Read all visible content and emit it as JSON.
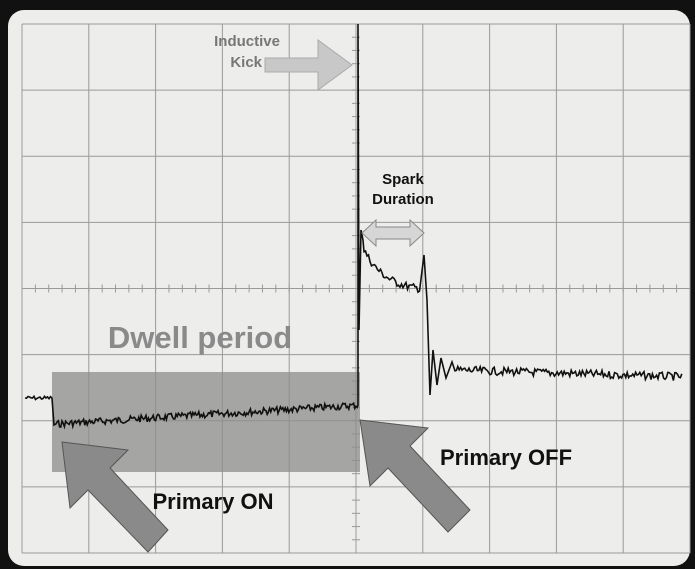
{
  "annotations": {
    "inductive_kick": [
      "Inductive",
      "Kick"
    ],
    "spark_duration": [
      "Spark",
      "Duration"
    ],
    "dwell_period": "Dwell period",
    "primary_on": "Primary ON",
    "primary_off": "Primary OFF"
  }
}
